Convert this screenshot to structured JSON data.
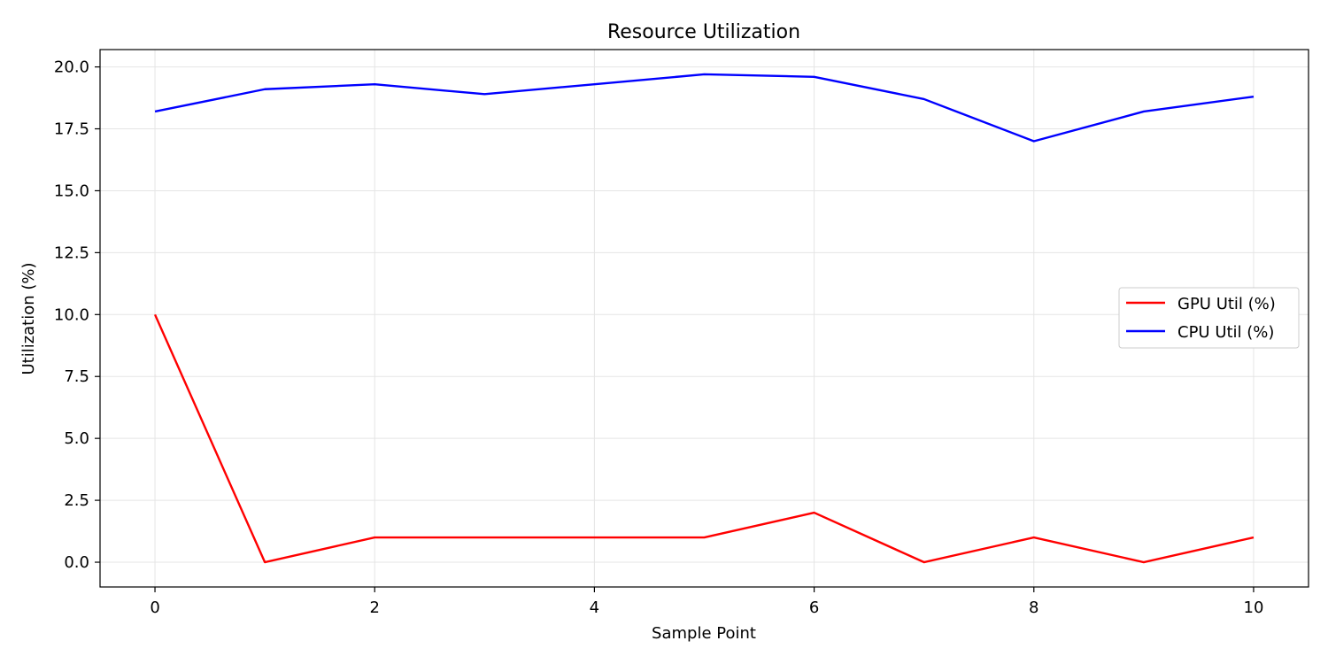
{
  "chart_data": {
    "type": "line",
    "title": "Resource Utilization",
    "xlabel": "Sample Point",
    "ylabel": "Utilization (%)",
    "x": [
      0,
      1,
      2,
      3,
      4,
      5,
      6,
      7,
      8,
      9,
      10
    ],
    "series": [
      {
        "name": "GPU Util (%)",
        "color": "#ff0000",
        "values": [
          10,
          0,
          1,
          1,
          1,
          1,
          2,
          0,
          1,
          0,
          1
        ]
      },
      {
        "name": "CPU Util (%)",
        "color": "#0000ff",
        "values": [
          18.2,
          19.1,
          19.3,
          18.9,
          19.3,
          19.7,
          19.6,
          18.7,
          17.0,
          18.2,
          18.8
        ]
      }
    ],
    "xlim": [
      -0.5,
      10.5
    ],
    "ylim": [
      -1.0,
      20.7
    ],
    "xticks": [
      0,
      2,
      4,
      6,
      8,
      10
    ],
    "xtick_labels": [
      "0",
      "2",
      "4",
      "6",
      "8",
      "10"
    ],
    "yticks": [
      0,
      2.5,
      5,
      7.5,
      10,
      12.5,
      15,
      17.5,
      20
    ],
    "ytick_labels": [
      "0.0",
      "2.5",
      "5.0",
      "7.5",
      "10.0",
      "12.5",
      "15.0",
      "17.5",
      "20.0"
    ],
    "grid": true,
    "legend_position": "center-right"
  }
}
